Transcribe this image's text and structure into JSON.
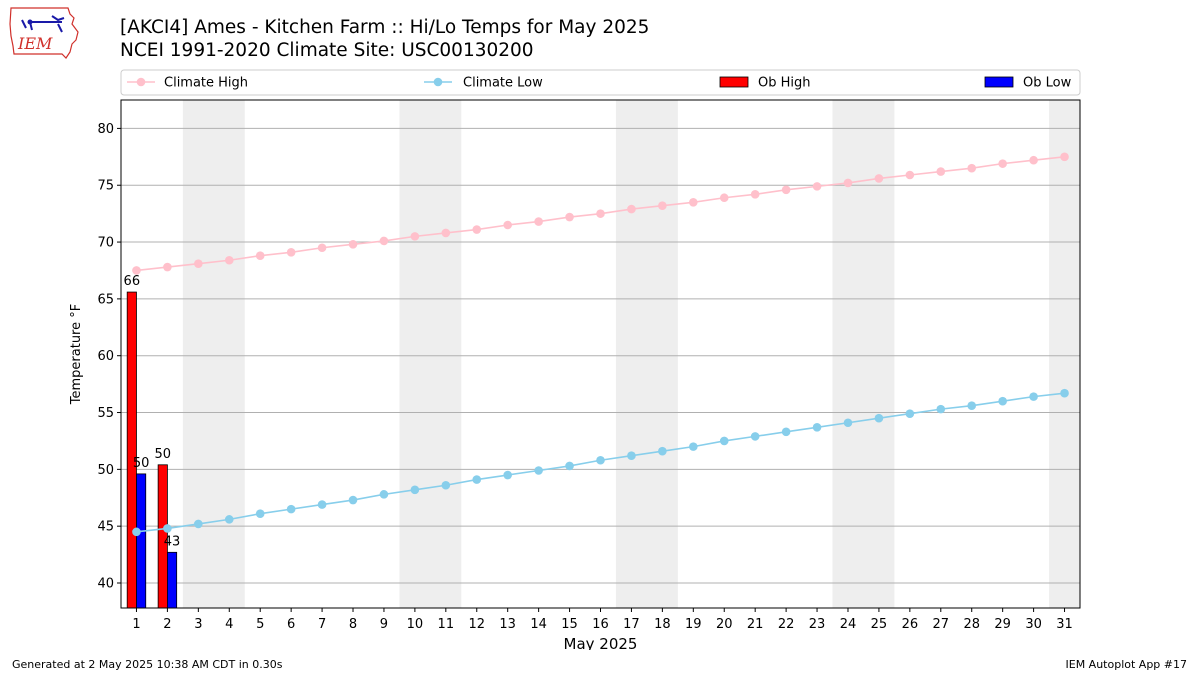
{
  "header": {
    "title": "[AKCI4] Ames - Kitchen Farm :: Hi/Lo Temps for May 2025",
    "subtitle": "NCEI 1991-2020 Climate Site: USC00130200",
    "logo_text": "IEM"
  },
  "footer": {
    "generated": "Generated at 2 May 2025 10:38 AM CDT in 0.30s",
    "app": "IEM Autoplot App #17"
  },
  "chart_data": {
    "type": "bar",
    "xlabel": "May 2025",
    "ylabel": "Temperature °F",
    "xlim": [
      0.5,
      31.5
    ],
    "ylim": [
      37.8,
      82.5
    ],
    "yticks": [
      40,
      45,
      50,
      55,
      60,
      65,
      70,
      75,
      80
    ],
    "xticks": [
      1,
      2,
      3,
      4,
      5,
      6,
      7,
      8,
      9,
      10,
      11,
      12,
      13,
      14,
      15,
      16,
      17,
      18,
      19,
      20,
      21,
      22,
      23,
      24,
      25,
      26,
      27,
      28,
      29,
      30,
      31
    ],
    "grid": "horizontal",
    "weekend_shading": [
      [
        2.5,
        4.5
      ],
      [
        9.5,
        11.5
      ],
      [
        16.5,
        18.5
      ],
      [
        23.5,
        25.5
      ],
      [
        30.5,
        31.5
      ]
    ],
    "legend": {
      "placement": "top",
      "entries": [
        "Climate High",
        "Climate Low",
        "Ob High",
        "Ob Low"
      ]
    },
    "colors": {
      "climate_high": "#ffc0cb",
      "climate_low": "#87ceeb",
      "ob_high": "#ff0000",
      "ob_low": "#0000ff",
      "weekend": "#eeeeee",
      "grid": "#b0b0b0"
    },
    "series": [
      {
        "name": "Climate High",
        "kind": "line",
        "x": [
          1,
          2,
          3,
          4,
          5,
          6,
          7,
          8,
          9,
          10,
          11,
          12,
          13,
          14,
          15,
          16,
          17,
          18,
          19,
          20,
          21,
          22,
          23,
          24,
          25,
          26,
          27,
          28,
          29,
          30,
          31
        ],
        "values": [
          67.5,
          67.8,
          68.1,
          68.4,
          68.8,
          69.1,
          69.5,
          69.8,
          70.1,
          70.5,
          70.8,
          71.1,
          71.5,
          71.8,
          72.2,
          72.5,
          72.9,
          73.2,
          73.5,
          73.9,
          74.2,
          74.6,
          74.9,
          75.2,
          75.6,
          75.9,
          76.2,
          76.5,
          76.9,
          77.2,
          77.5
        ]
      },
      {
        "name": "Climate Low",
        "kind": "line",
        "x": [
          1,
          2,
          3,
          4,
          5,
          6,
          7,
          8,
          9,
          10,
          11,
          12,
          13,
          14,
          15,
          16,
          17,
          18,
          19,
          20,
          21,
          22,
          23,
          24,
          25,
          26,
          27,
          28,
          29,
          30,
          31
        ],
        "values": [
          44.5,
          44.8,
          45.2,
          45.6,
          46.1,
          46.5,
          46.9,
          47.3,
          47.8,
          48.2,
          48.6,
          49.1,
          49.5,
          49.9,
          50.3,
          50.8,
          51.2,
          51.6,
          52.0,
          52.5,
          52.9,
          53.3,
          53.7,
          54.1,
          54.5,
          54.9,
          55.3,
          55.6,
          56.0,
          56.4,
          56.7
        ]
      },
      {
        "name": "Ob High",
        "kind": "bar",
        "x": [
          1,
          2
        ],
        "values": [
          65.6,
          50.4
        ],
        "labels": [
          "66",
          "50"
        ]
      },
      {
        "name": "Ob Low",
        "kind": "bar",
        "x": [
          1,
          2
        ],
        "values": [
          49.6,
          42.7
        ],
        "labels": [
          "50",
          "43"
        ]
      }
    ]
  }
}
